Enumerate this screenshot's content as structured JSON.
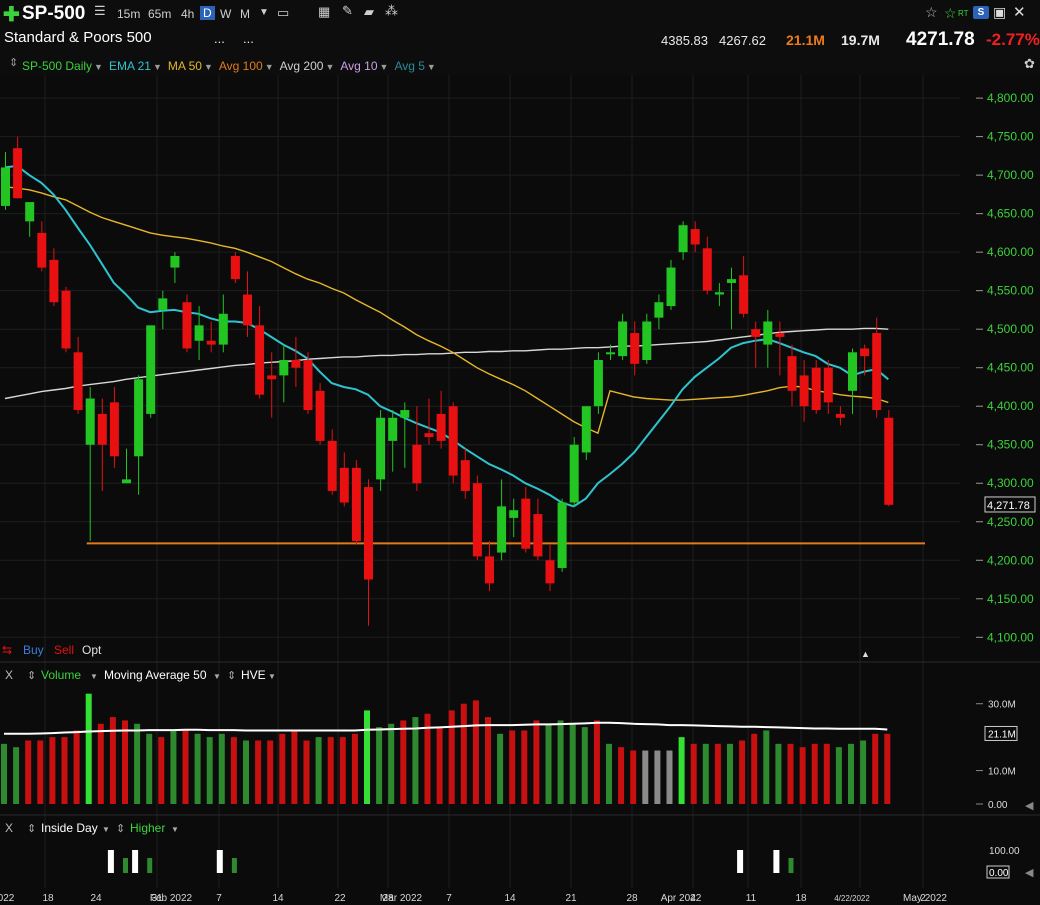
{
  "toolbar": {
    "plus_icon": "plus-icon",
    "symbol": "SP-500",
    "timeframes": [
      "15m",
      "65m",
      "4h",
      "D",
      "W",
      "M"
    ],
    "selected_timeframe": "D",
    "right_icons": [
      "star-icon",
      "star-outline-icon",
      "rt-icon",
      "s-dropdown-icon",
      "save-icon",
      "close-icon"
    ],
    "rt_label": "RT",
    "s_label": "S"
  },
  "header": {
    "name": "Standard & Poors 500",
    "ellipsis_1": "...",
    "ellipsis_2": "...",
    "high": "4385.83",
    "low": "4267.62",
    "volume": "21.1M",
    "avg_volume": "19.7M",
    "last": "4271.78",
    "change": "-2.77%"
  },
  "indicators": [
    {
      "label": "SP-500 Daily",
      "color": "#3cd23c"
    },
    {
      "label": "EMA 21",
      "color": "#2ec4cf"
    },
    {
      "label": "MA 50",
      "color": "#e6b72a"
    },
    {
      "label": "Avg 100",
      "color": "#e07b1f"
    },
    {
      "label": "Avg 200",
      "color": "#cfcfcf"
    },
    {
      "label": "Avg 10",
      "color": "#c9a0e6"
    },
    {
      "label": "Avg 5",
      "color": "#2a8a9c"
    }
  ],
  "trade_bar": {
    "buy": "Buy",
    "sell": "Sell",
    "opt": "Opt"
  },
  "volume_panel": {
    "close": "X",
    "label": "Volume",
    "ma_label": "Moving Average 50",
    "hve_label": "HVE",
    "ticks": [
      "30.0M",
      "21.1M",
      "10.0M",
      "0.00"
    ]
  },
  "inside_panel": {
    "close": "X",
    "label1": "Inside Day",
    "label2": "Higher",
    "ticks": [
      "100.00",
      "0.00"
    ]
  },
  "x_axis_labels": [
    "022",
    "18",
    "24",
    "31",
    "Feb 2022",
    "7",
    "14",
    "22",
    "28",
    "Mar 2022",
    "7",
    "14",
    "21",
    "28",
    "4",
    "Apr 2022",
    "11",
    "18",
    "4/22/2022",
    "2",
    "May 2022"
  ],
  "colors": {
    "up": "#22c522",
    "down": "#e81010",
    "ema21": "#2ec4cf",
    "ma50": "#e6b72a",
    "avg200": "#d8d8d8",
    "support": "#e07b1f",
    "grid": "#1e1e1e"
  },
  "chart_data": {
    "type": "candlestick",
    "title": "SP-500 Daily",
    "ylabel": "",
    "ylim": [
      4090,
      4830
    ],
    "y_ticks": [
      4100,
      4150,
      4200,
      4250,
      4300,
      4350,
      4400,
      4450,
      4500,
      4550,
      4600,
      4650,
      4700,
      4750,
      4800
    ],
    "last_price_label": "4,271.78",
    "support_level": 4222,
    "candles": [
      {
        "o": 4660,
        "h": 4730,
        "l": 4655,
        "c": 4710
      },
      {
        "o": 4735,
        "h": 4750,
        "l": 4670,
        "c": 4670
      },
      {
        "o": 4640,
        "h": 4660,
        "l": 4620,
        "c": 4665
      },
      {
        "o": 4625,
        "h": 4640,
        "l": 4575,
        "c": 4580
      },
      {
        "o": 4590,
        "h": 4605,
        "l": 4530,
        "c": 4535
      },
      {
        "o": 4550,
        "h": 4555,
        "l": 4470,
        "c": 4475
      },
      {
        "o": 4470,
        "h": 4490,
        "l": 4390,
        "c": 4395
      },
      {
        "o": 4350,
        "h": 4425,
        "l": 4225,
        "c": 4410
      },
      {
        "o": 4390,
        "h": 4410,
        "l": 4290,
        "c": 4350
      },
      {
        "o": 4405,
        "h": 4425,
        "l": 4320,
        "c": 4335
      },
      {
        "o": 4300,
        "h": 4345,
        "l": 4300,
        "c": 4305
      },
      {
        "o": 4335,
        "h": 4440,
        "l": 4285,
        "c": 4435
      },
      {
        "o": 4390,
        "h": 4500,
        "l": 4385,
        "c": 4505
      },
      {
        "o": 4525,
        "h": 4550,
        "l": 4500,
        "c": 4540
      },
      {
        "o": 4580,
        "h": 4600,
        "l": 4560,
        "c": 4595
      },
      {
        "o": 4535,
        "h": 4545,
        "l": 4470,
        "c": 4475
      },
      {
        "o": 4485,
        "h": 4530,
        "l": 4460,
        "c": 4505
      },
      {
        "o": 4485,
        "h": 4510,
        "l": 4470,
        "c": 4480
      },
      {
        "o": 4480,
        "h": 4545,
        "l": 4470,
        "c": 4520
      },
      {
        "o": 4595,
        "h": 4600,
        "l": 4560,
        "c": 4565
      },
      {
        "o": 4545,
        "h": 4575,
        "l": 4490,
        "c": 4505
      },
      {
        "o": 4505,
        "h": 4530,
        "l": 4410,
        "c": 4415
      },
      {
        "o": 4440,
        "h": 4470,
        "l": 4385,
        "c": 4435
      },
      {
        "o": 4440,
        "h": 4480,
        "l": 4405,
        "c": 4460
      },
      {
        "o": 4460,
        "h": 4490,
        "l": 4425,
        "c": 4450
      },
      {
        "o": 4460,
        "h": 4470,
        "l": 4390,
        "c": 4395
      },
      {
        "o": 4420,
        "h": 4430,
        "l": 4350,
        "c": 4355
      },
      {
        "o": 4355,
        "h": 4370,
        "l": 4285,
        "c": 4290
      },
      {
        "o": 4320,
        "h": 4340,
        "l": 4270,
        "c": 4275
      },
      {
        "o": 4320,
        "h": 4330,
        "l": 4220,
        "c": 4225
      },
      {
        "o": 4295,
        "h": 4305,
        "l": 4115,
        "c": 4175
      },
      {
        "o": 4305,
        "h": 4395,
        "l": 4290,
        "c": 4385
      },
      {
        "o": 4355,
        "h": 4395,
        "l": 4315,
        "c": 4385
      },
      {
        "o": 4385,
        "h": 4405,
        "l": 4320,
        "c": 4395
      },
      {
        "o": 4350,
        "h": 4400,
        "l": 4290,
        "c": 4300
      },
      {
        "o": 4365,
        "h": 4410,
        "l": 4350,
        "c": 4360
      },
      {
        "o": 4390,
        "h": 4420,
        "l": 4345,
        "c": 4355
      },
      {
        "o": 4400,
        "h": 4405,
        "l": 4300,
        "c": 4310
      },
      {
        "o": 4330,
        "h": 4345,
        "l": 4280,
        "c": 4290
      },
      {
        "o": 4300,
        "h": 4310,
        "l": 4200,
        "c": 4205
      },
      {
        "o": 4205,
        "h": 4225,
        "l": 4160,
        "c": 4170
      },
      {
        "o": 4210,
        "h": 4305,
        "l": 4200,
        "c": 4270
      },
      {
        "o": 4255,
        "h": 4280,
        "l": 4230,
        "c": 4265
      },
      {
        "o": 4280,
        "h": 4295,
        "l": 4210,
        "c": 4215
      },
      {
        "o": 4260,
        "h": 4280,
        "l": 4200,
        "c": 4205
      },
      {
        "o": 4200,
        "h": 4220,
        "l": 4160,
        "c": 4170
      },
      {
        "o": 4190,
        "h": 4280,
        "l": 4185,
        "c": 4275
      },
      {
        "o": 4275,
        "h": 4360,
        "l": 4270,
        "c": 4350
      },
      {
        "o": 4340,
        "h": 4400,
        "l": 4330,
        "c": 4400
      },
      {
        "o": 4400,
        "h": 4470,
        "l": 4390,
        "c": 4460
      },
      {
        "o": 4470,
        "h": 4480,
        "l": 4460,
        "c": 4470
      },
      {
        "o": 4465,
        "h": 4520,
        "l": 4460,
        "c": 4510
      },
      {
        "o": 4495,
        "h": 4510,
        "l": 4440,
        "c": 4455
      },
      {
        "o": 4460,
        "h": 4520,
        "l": 4455,
        "c": 4510
      },
      {
        "o": 4515,
        "h": 4545,
        "l": 4500,
        "c": 4535
      },
      {
        "o": 4530,
        "h": 4590,
        "l": 4525,
        "c": 4580
      },
      {
        "o": 4600,
        "h": 4640,
        "l": 4590,
        "c": 4635
      },
      {
        "o": 4630,
        "h": 4640,
        "l": 4600,
        "c": 4610
      },
      {
        "o": 4605,
        "h": 4620,
        "l": 4545,
        "c": 4550
      },
      {
        "o": 4545,
        "h": 4560,
        "l": 4530,
        "c": 4548
      },
      {
        "o": 4560,
        "h": 4580,
        "l": 4500,
        "c": 4565
      },
      {
        "o": 4570,
        "h": 4595,
        "l": 4515,
        "c": 4520
      },
      {
        "o": 4500,
        "h": 4510,
        "l": 4450,
        "c": 4490
      },
      {
        "o": 4480,
        "h": 4525,
        "l": 4450,
        "c": 4510
      },
      {
        "o": 4495,
        "h": 4510,
        "l": 4440,
        "c": 4490
      },
      {
        "o": 4465,
        "h": 4480,
        "l": 4400,
        "c": 4420
      },
      {
        "o": 4440,
        "h": 4460,
        "l": 4380,
        "c": 4400
      },
      {
        "o": 4450,
        "h": 4460,
        "l": 4390,
        "c": 4395
      },
      {
        "o": 4450,
        "h": 4460,
        "l": 4390,
        "c": 4405
      },
      {
        "o": 4390,
        "h": 4400,
        "l": 4375,
        "c": 4385
      },
      {
        "o": 4420,
        "h": 4475,
        "l": 4390,
        "c": 4470
      },
      {
        "o": 4475,
        "h": 4480,
        "l": 4440,
        "c": 4465
      },
      {
        "o": 4495,
        "h": 4515,
        "l": 4385,
        "c": 4395
      },
      {
        "o": 4385,
        "h": 4395,
        "l": 4270,
        "c": 4272
      }
    ],
    "ema21": [
      4710,
      4712,
      4700,
      4690,
      4675,
      4655,
      4632,
      4610,
      4585,
      4560,
      4545,
      4528,
      4522,
      4524,
      4525,
      4522,
      4520,
      4514,
      4510,
      4510,
      4508,
      4500,
      4490,
      4480,
      4472,
      4462,
      4445,
      4430,
      4425,
      4422,
      4415,
      4400,
      4393,
      4385,
      4378,
      4372,
      4366,
      4356,
      4345,
      4335,
      4325,
      4318,
      4310,
      4300,
      4293,
      4285,
      4275,
      4270,
      4280,
      4300,
      4312,
      4325,
      4340,
      4360,
      4380,
      4400,
      4422,
      4438,
      4450,
      4462,
      4476,
      4482,
      4485,
      4487,
      4482,
      4476,
      4470,
      4465,
      4455,
      4450,
      4440,
      4445,
      4448,
      4435
    ],
    "ma50": [
      4685,
      4683,
      4681,
      4677,
      4672,
      4668,
      4660,
      4652,
      4645,
      4640,
      4635,
      4630,
      4625,
      4622,
      4620,
      4618,
      4615,
      4612,
      4608,
      4605,
      4600,
      4594,
      4588,
      4580,
      4572,
      4565,
      4560,
      4553,
      4547,
      4538,
      4530,
      4522,
      4512,
      4503,
      4493,
      4485,
      4478,
      4470,
      4460,
      4450,
      4442,
      4435,
      4428,
      4420,
      4410,
      4400,
      4390,
      4380,
      4372,
      4365,
      4420,
      4416,
      4412,
      4410,
      4409,
      4408,
      4408,
      4409,
      4410,
      4411,
      4412,
      4414,
      4417,
      4420,
      4424,
      4426,
      4425,
      4420,
      4418,
      4415,
      4413,
      4412,
      4410,
      4405
    ],
    "avg200": [
      4410,
      4413,
      4416,
      4419,
      4421,
      4423,
      4426,
      4428,
      4430,
      4432,
      4435,
      4437,
      4439,
      4441,
      4443,
      4445,
      4447,
      4449,
      4451,
      4453,
      4454,
      4456,
      4457,
      4458,
      4459,
      4461,
      4462,
      4463,
      4464,
      4464,
      4465,
      4466,
      4466,
      4467,
      4467,
      4468,
      4468,
      4469,
      4470,
      4470,
      4471,
      4471,
      4472,
      4472,
      4473,
      4474,
      4474,
      4475,
      4476,
      4476,
      4477,
      4478,
      4478,
      4479,
      4480,
      4481,
      4482,
      4483,
      4484,
      4486,
      4488,
      4490,
      4492,
      4494,
      4496,
      4497,
      4498,
      4499,
      4500,
      4500,
      4500,
      4501,
      4501,
      4500
    ],
    "volume_ylim": [
      0,
      35
    ],
    "volume": [
      {
        "v": 18,
        "d": false
      },
      {
        "v": 17,
        "d": false
      },
      {
        "v": 19,
        "d": true
      },
      {
        "v": 19,
        "d": true
      },
      {
        "v": 20,
        "d": true
      },
      {
        "v": 20,
        "d": true
      },
      {
        "v": 22,
        "d": true
      },
      {
        "v": 33,
        "d": false
      },
      {
        "v": 24,
        "d": true
      },
      {
        "v": 26,
        "d": true
      },
      {
        "v": 25,
        "d": true
      },
      {
        "v": 24,
        "d": false
      },
      {
        "v": 21,
        "d": false
      },
      {
        "v": 20,
        "d": true
      },
      {
        "v": 22,
        "d": false
      },
      {
        "v": 22,
        "d": true
      },
      {
        "v": 21,
        "d": false
      },
      {
        "v": 20,
        "d": false
      },
      {
        "v": 21,
        "d": false
      },
      {
        "v": 20,
        "d": true
      },
      {
        "v": 19,
        "d": false
      },
      {
        "v": 19,
        "d": true
      },
      {
        "v": 19,
        "d": true
      },
      {
        "v": 21,
        "d": true
      },
      {
        "v": 22,
        "d": true
      },
      {
        "v": 19,
        "d": true
      },
      {
        "v": 20,
        "d": false
      },
      {
        "v": 20,
        "d": true
      },
      {
        "v": 20,
        "d": true
      },
      {
        "v": 21,
        "d": true
      },
      {
        "v": 28,
        "d": false
      },
      {
        "v": 23,
        "d": false
      },
      {
        "v": 24,
        "d": false
      },
      {
        "v": 25,
        "d": true
      },
      {
        "v": 26,
        "d": false
      },
      {
        "v": 27,
        "d": true
      },
      {
        "v": 23,
        "d": true
      },
      {
        "v": 28,
        "d": true
      },
      {
        "v": 30,
        "d": true
      },
      {
        "v": 31,
        "d": true
      },
      {
        "v": 26,
        "d": true
      },
      {
        "v": 21,
        "d": false
      },
      {
        "v": 22,
        "d": true
      },
      {
        "v": 22,
        "d": true
      },
      {
        "v": 25,
        "d": true
      },
      {
        "v": 24,
        "d": false
      },
      {
        "v": 25,
        "d": false
      },
      {
        "v": 24,
        "d": false
      },
      {
        "v": 23,
        "d": false
      },
      {
        "v": 25,
        "d": true
      },
      {
        "v": 18,
        "d": false
      },
      {
        "v": 17,
        "d": true
      },
      {
        "v": 16,
        "d": true
      },
      {
        "v": 16,
        "d": "g"
      },
      {
        "v": 16,
        "d": "g"
      },
      {
        "v": 16,
        "d": "g"
      },
      {
        "v": 20,
        "d": false
      },
      {
        "v": 18,
        "d": true
      },
      {
        "v": 18,
        "d": false
      },
      {
        "v": 18,
        "d": true
      },
      {
        "v": 18,
        "d": false
      },
      {
        "v": 19,
        "d": true
      },
      {
        "v": 21,
        "d": true
      },
      {
        "v": 22,
        "d": false
      },
      {
        "v": 18,
        "d": false
      },
      {
        "v": 18,
        "d": true
      },
      {
        "v": 17,
        "d": true
      },
      {
        "v": 18,
        "d": true
      },
      {
        "v": 18,
        "d": true
      },
      {
        "v": 17,
        "d": false
      },
      {
        "v": 18,
        "d": false
      },
      {
        "v": 19,
        "d": false
      },
      {
        "v": 21,
        "d": true
      },
      {
        "v": 21,
        "d": true
      }
    ],
    "volume_ma": [
      21,
      21,
      21,
      21.1,
      21.2,
      21.4,
      21.5,
      21.7,
      21.8,
      21.9,
      22,
      22,
      22.1,
      22.1,
      22.1,
      22.2,
      22.2,
      22.1,
      22.1,
      22.1,
      22,
      22,
      22,
      22,
      22,
      22,
      22,
      22,
      22,
      22,
      22.2,
      22.3,
      22.4,
      22.5,
      22.6,
      22.8,
      22.9,
      23.1,
      23.3,
      23.5,
      23.6,
      23.6,
      23.6,
      23.7,
      23.8,
      23.8,
      23.9,
      24,
      24.1,
      24.3,
      24.3,
      24.2,
      24,
      23.9,
      23.8,
      23.6,
      23.6,
      23.5,
      23.4,
      23.3,
      23.2,
      23.1,
      23.1,
      23,
      22.9,
      22.8,
      22.7,
      22.6,
      22.6,
      22.5,
      22.5,
      22.5,
      22.5,
      22.3
    ],
    "inside_day_bars": [
      {
        "i": 9,
        "kind": "white"
      },
      {
        "i": 10,
        "kind": "green"
      },
      {
        "i": 11,
        "kind": "white"
      },
      {
        "i": 12,
        "kind": "green"
      },
      {
        "i": 18,
        "kind": "white"
      },
      {
        "i": 19,
        "kind": "green"
      },
      {
        "i": 61,
        "kind": "white"
      },
      {
        "i": 64,
        "kind": "white"
      },
      {
        "i": 65,
        "kind": "green"
      }
    ]
  }
}
